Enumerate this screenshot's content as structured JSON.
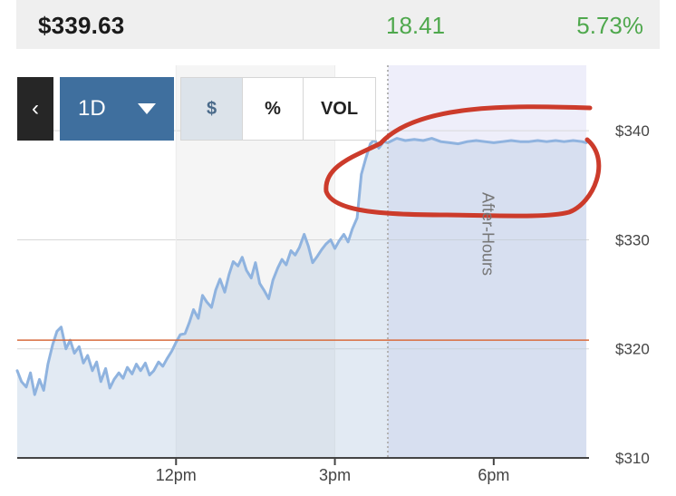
{
  "quote": {
    "price": "$339.63",
    "change": "18.41",
    "percent_change": "5.73%"
  },
  "controls": {
    "back_icon": "chevron-left-icon",
    "back_glyph": "‹",
    "range_label": "1D",
    "range_icon": "caret-down-icon",
    "segments": [
      "$",
      "%",
      "VOL"
    ],
    "active_segment": "$"
  },
  "colors": {
    "positive": "#4fa84d",
    "price_line": "#8fb3df",
    "reference_line": "#d86b3d",
    "annotation": "#cc3b2b",
    "active_range_button": "#3f6f9e"
  },
  "chart_data": {
    "type": "area",
    "title": "",
    "xlabel": "",
    "ylabel": "",
    "y_axis_side": "right",
    "ylim": [
      310,
      346
    ],
    "xlim": [
      9.0,
      19.8
    ],
    "x_ticks": [
      {
        "x": 12,
        "label": "12pm"
      },
      {
        "x": 15,
        "label": "3pm"
      },
      {
        "x": 18,
        "label": "6pm"
      }
    ],
    "y_ticks": [
      {
        "value": 310,
        "label": "$310"
      },
      {
        "value": 320,
        "label": "$320"
      },
      {
        "value": 330,
        "label": "$330"
      },
      {
        "value": 340,
        "label": "$340"
      }
    ],
    "grid": "horizontal",
    "shaded_regions": [
      {
        "name": "after-hours",
        "label": "After-Hours",
        "x_from": 16.0,
        "x_to": 19.75
      }
    ],
    "reference_line": {
      "value": 320.8
    },
    "series": [
      {
        "points": [
          [
            9.0,
            318.0
          ],
          [
            9.08,
            317.0
          ],
          [
            9.17,
            316.5
          ],
          [
            9.25,
            317.8
          ],
          [
            9.33,
            315.8
          ],
          [
            9.42,
            317.2
          ],
          [
            9.5,
            316.2
          ],
          [
            9.58,
            318.6
          ],
          [
            9.67,
            320.4
          ],
          [
            9.75,
            321.6
          ],
          [
            9.83,
            322.0
          ],
          [
            9.92,
            320.0
          ],
          [
            10.0,
            320.8
          ],
          [
            10.08,
            319.6
          ],
          [
            10.17,
            320.2
          ],
          [
            10.25,
            318.7
          ],
          [
            10.33,
            319.4
          ],
          [
            10.42,
            318.0
          ],
          [
            10.5,
            318.8
          ],
          [
            10.58,
            317.0
          ],
          [
            10.67,
            318.2
          ],
          [
            10.75,
            316.4
          ],
          [
            10.83,
            317.2
          ],
          [
            10.92,
            317.8
          ],
          [
            11.0,
            317.3
          ],
          [
            11.08,
            318.3
          ],
          [
            11.17,
            317.7
          ],
          [
            11.25,
            318.6
          ],
          [
            11.33,
            318.0
          ],
          [
            11.42,
            318.7
          ],
          [
            11.5,
            317.6
          ],
          [
            11.58,
            318.0
          ],
          [
            11.67,
            318.8
          ],
          [
            11.75,
            318.4
          ],
          [
            11.83,
            319.1
          ],
          [
            11.92,
            319.8
          ],
          [
            12.0,
            320.6
          ],
          [
            12.08,
            321.3
          ],
          [
            12.17,
            321.4
          ],
          [
            12.25,
            322.4
          ],
          [
            12.33,
            323.6
          ],
          [
            12.42,
            322.8
          ],
          [
            12.5,
            324.9
          ],
          [
            12.58,
            324.3
          ],
          [
            12.67,
            323.8
          ],
          [
            12.75,
            325.4
          ],
          [
            12.83,
            326.4
          ],
          [
            12.92,
            325.2
          ],
          [
            13.0,
            326.8
          ],
          [
            13.08,
            328.0
          ],
          [
            13.17,
            327.6
          ],
          [
            13.25,
            328.4
          ],
          [
            13.33,
            327.2
          ],
          [
            13.42,
            326.5
          ],
          [
            13.5,
            327.9
          ],
          [
            13.58,
            326.0
          ],
          [
            13.67,
            325.3
          ],
          [
            13.75,
            324.6
          ],
          [
            13.83,
            326.3
          ],
          [
            13.92,
            327.4
          ],
          [
            14.0,
            328.2
          ],
          [
            14.08,
            327.7
          ],
          [
            14.17,
            329.0
          ],
          [
            14.25,
            328.6
          ],
          [
            14.33,
            329.3
          ],
          [
            14.42,
            330.5
          ],
          [
            14.5,
            329.4
          ],
          [
            14.58,
            327.9
          ],
          [
            14.67,
            328.5
          ],
          [
            14.75,
            329.1
          ],
          [
            14.83,
            329.6
          ],
          [
            14.92,
            330.0
          ],
          [
            15.0,
            329.2
          ],
          [
            15.08,
            329.9
          ],
          [
            15.17,
            330.5
          ],
          [
            15.25,
            329.8
          ],
          [
            15.33,
            331.0
          ],
          [
            15.42,
            332.0
          ],
          [
            15.5,
            336.0
          ],
          [
            15.58,
            337.4
          ],
          [
            15.67,
            338.8
          ],
          [
            15.75,
            339.2
          ],
          [
            15.83,
            338.4
          ],
          [
            15.92,
            339.0
          ],
          [
            16.0,
            338.9
          ],
          [
            16.17,
            339.3
          ],
          [
            16.33,
            339.1
          ],
          [
            16.5,
            339.2
          ],
          [
            16.67,
            339.1
          ],
          [
            16.83,
            339.3
          ],
          [
            17.0,
            339.0
          ],
          [
            17.17,
            338.9
          ],
          [
            17.33,
            338.8
          ],
          [
            17.5,
            339.0
          ],
          [
            17.67,
            339.1
          ],
          [
            17.83,
            339.0
          ],
          [
            18.0,
            338.9
          ],
          [
            18.17,
            339.0
          ],
          [
            18.33,
            339.1
          ],
          [
            18.5,
            339.0
          ],
          [
            18.67,
            339.0
          ],
          [
            18.83,
            339.1
          ],
          [
            19.0,
            339.0
          ],
          [
            19.17,
            339.1
          ],
          [
            19.33,
            339.0
          ],
          [
            19.5,
            339.1
          ],
          [
            19.67,
            339.0
          ],
          [
            19.75,
            338.9
          ]
        ]
      }
    ]
  }
}
